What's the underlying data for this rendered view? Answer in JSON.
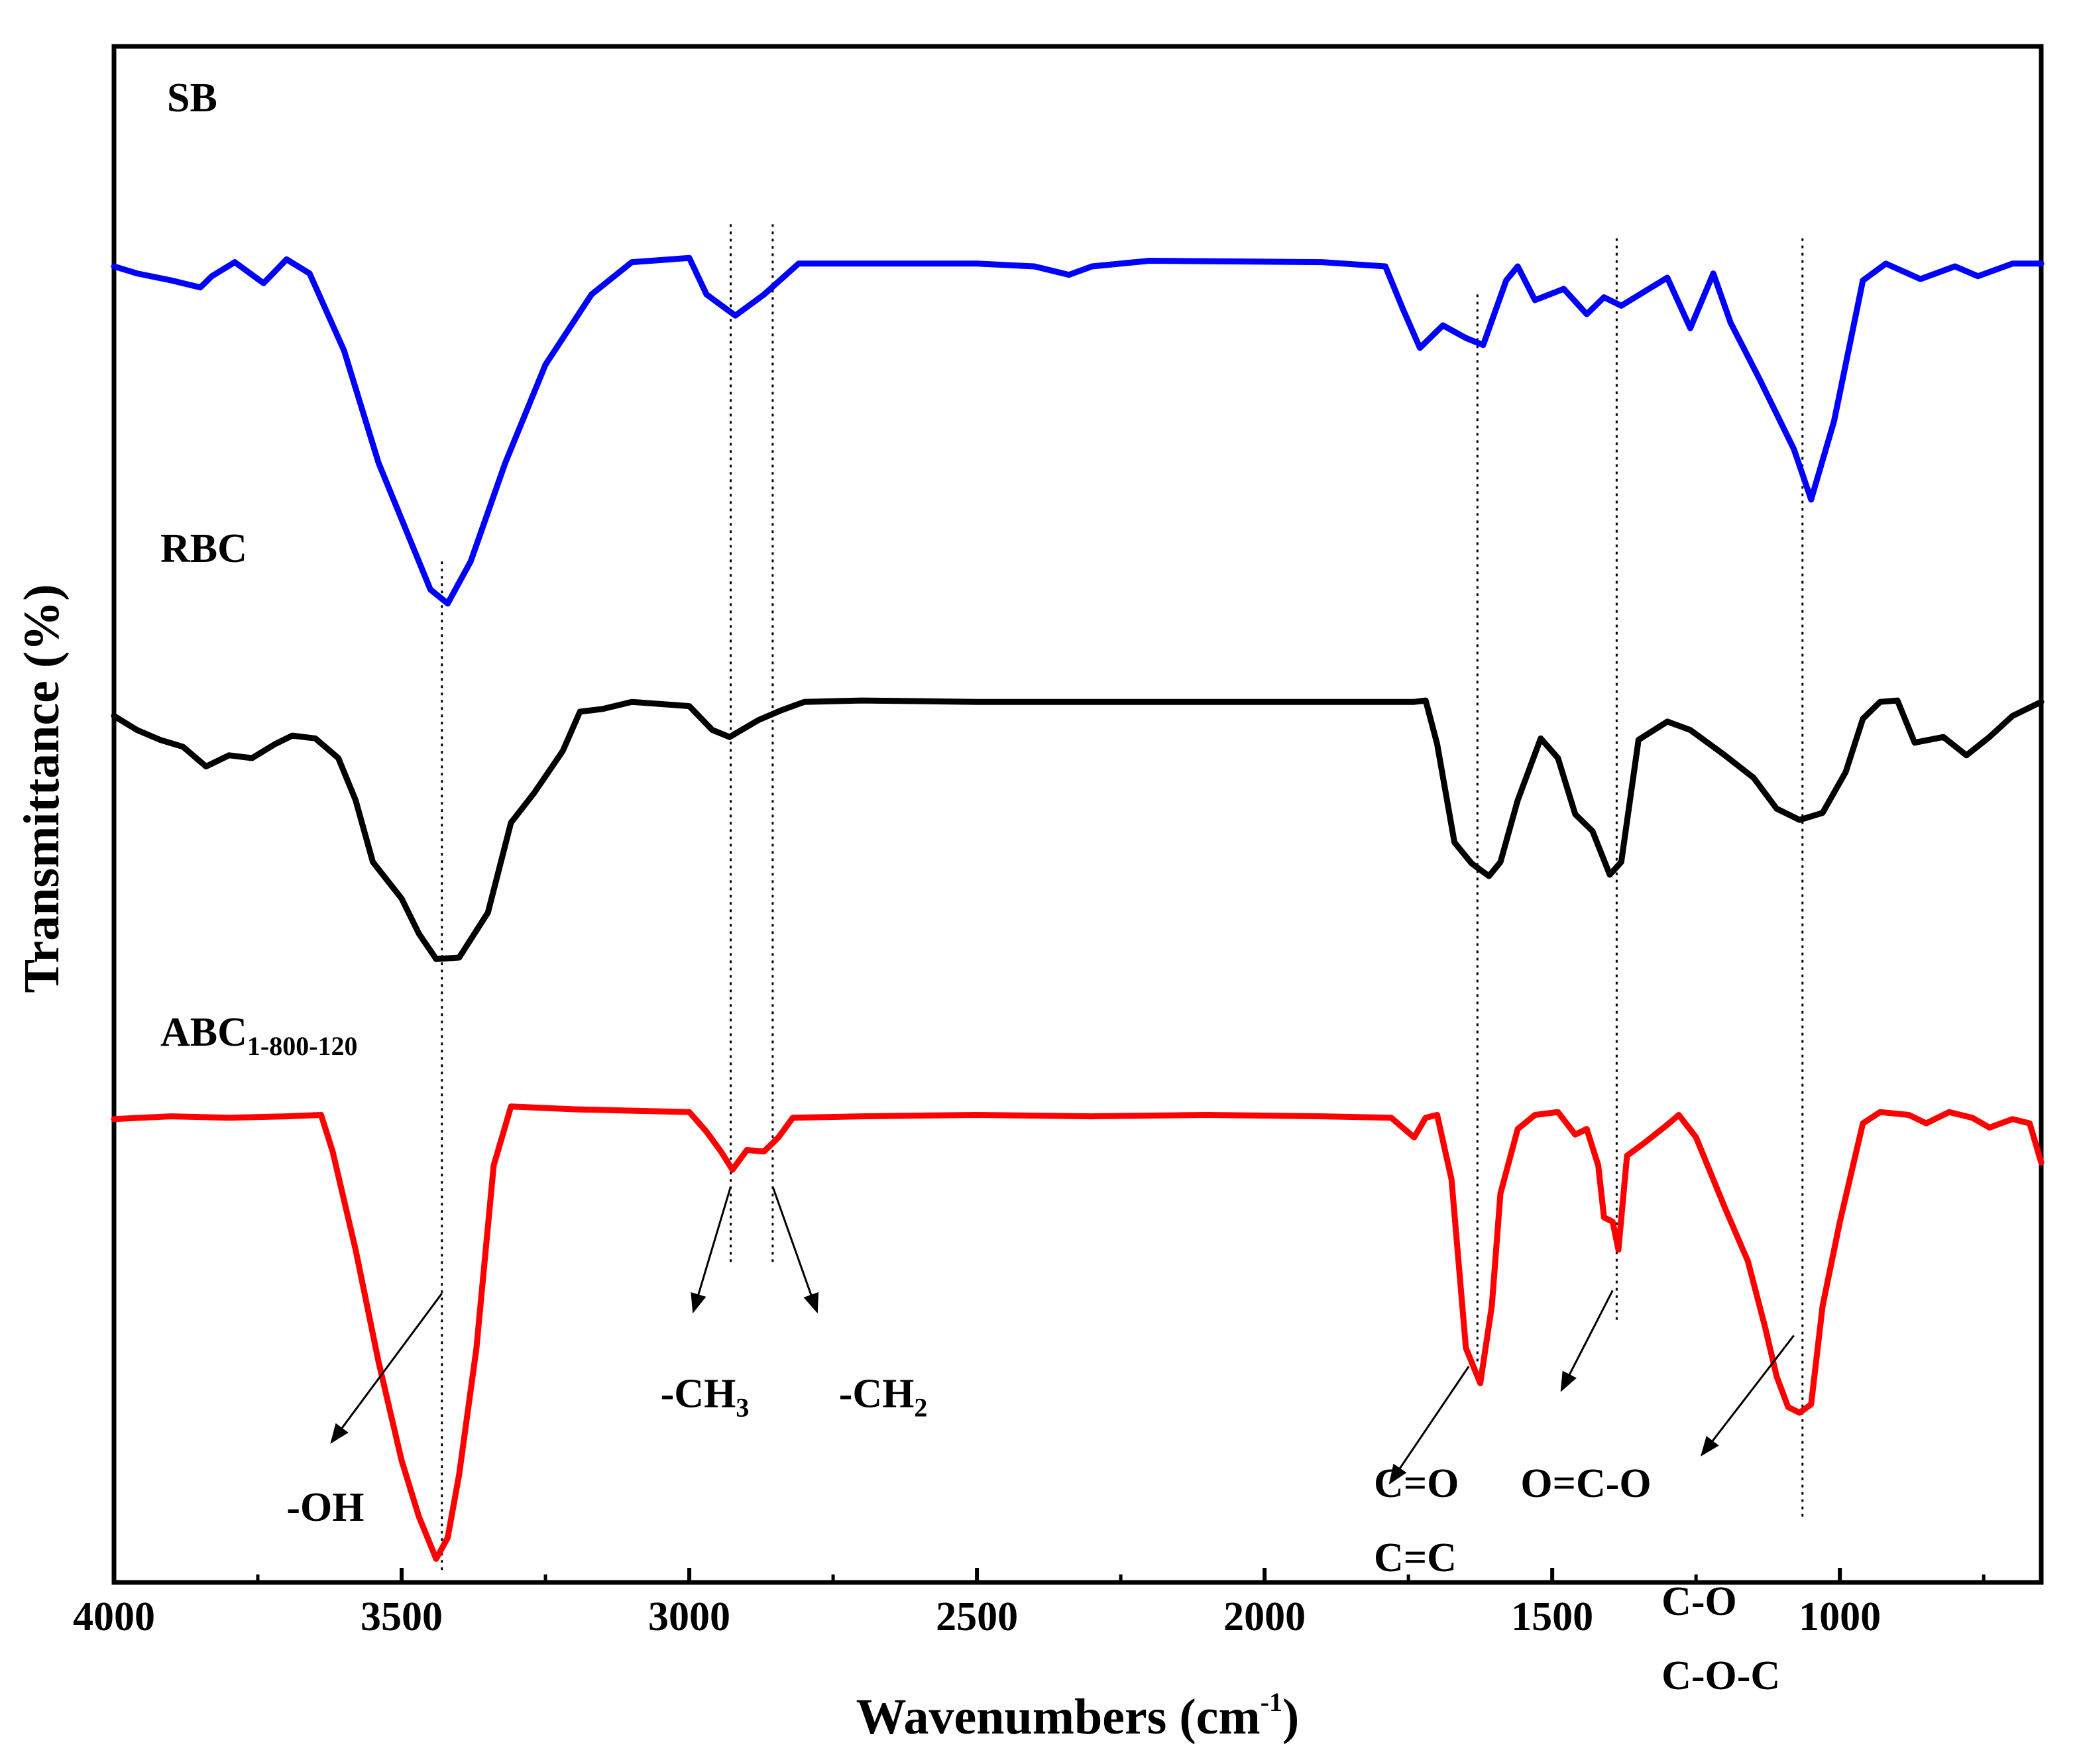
{
  "chart_data": {
    "type": "line",
    "title": "",
    "xlabel": "Wavenumbers (cm",
    "xlabel_sup": "-1",
    "xlabel_close": ")",
    "ylabel": "Transmittance (%)",
    "xlim": [
      4000,
      650
    ],
    "xticks": [
      4000,
      3500,
      3000,
      2500,
      2000,
      1500,
      1000
    ],
    "xtick_labels": [
      "4000",
      "3500",
      "3000",
      "2500",
      "2000",
      "1500",
      "1000"
    ],
    "ylim": [
      0,
      100
    ],
    "y_ticks_labeled": false,
    "series": [
      {
        "name": "SB",
        "label": "SB",
        "color": "#0000ff",
        "baseline_offset": 0,
        "points": [
          [
            4000,
            90
          ],
          [
            3960,
            89.5
          ],
          [
            3900,
            89
          ],
          [
            3850,
            88.5
          ],
          [
            3830,
            89.3
          ],
          [
            3790,
            90.3
          ],
          [
            3740,
            88.8
          ],
          [
            3700,
            90.5
          ],
          [
            3660,
            89.5
          ],
          [
            3600,
            84
          ],
          [
            3540,
            76
          ],
          [
            3490,
            71
          ],
          [
            3450,
            67
          ],
          [
            3420,
            66
          ],
          [
            3380,
            69
          ],
          [
            3320,
            76
          ],
          [
            3250,
            83
          ],
          [
            3170,
            88
          ],
          [
            3100,
            90.3
          ],
          [
            3000,
            90.6
          ],
          [
            2970,
            88
          ],
          [
            2920,
            86.5
          ],
          [
            2870,
            88
          ],
          [
            2810,
            90.2
          ],
          [
            2700,
            90.2
          ],
          [
            2500,
            90.2
          ],
          [
            2400,
            90
          ],
          [
            2340,
            89.4
          ],
          [
            2300,
            90
          ],
          [
            2200,
            90.4
          ],
          [
            1900,
            90.3
          ],
          [
            1790,
            90
          ],
          [
            1760,
            87
          ],
          [
            1730,
            84.2
          ],
          [
            1690,
            85.8
          ],
          [
            1650,
            84.9
          ],
          [
            1620,
            84.4
          ],
          [
            1580,
            89
          ],
          [
            1560,
            90
          ],
          [
            1530,
            87.6
          ],
          [
            1480,
            88.4
          ],
          [
            1440,
            86.6
          ],
          [
            1410,
            87.8
          ],
          [
            1380,
            87.2
          ],
          [
            1340,
            88.2
          ],
          [
            1300,
            89.2
          ],
          [
            1260,
            85.6
          ],
          [
            1220,
            89.5
          ],
          [
            1190,
            86
          ],
          [
            1140,
            82
          ],
          [
            1080,
            77
          ],
          [
            1050,
            73.4
          ],
          [
            1010,
            79
          ],
          [
            960,
            89
          ],
          [
            920,
            90.2
          ],
          [
            860,
            89.1
          ],
          [
            800,
            90
          ],
          [
            760,
            89.3
          ],
          [
            700,
            90.2
          ],
          [
            650,
            90.2
          ]
        ]
      },
      {
        "name": "RBC",
        "label": "RBC",
        "color": "#000000",
        "baseline_offset": 0,
        "points": [
          [
            4000,
            58
          ],
          [
            3960,
            57
          ],
          [
            3920,
            56.3
          ],
          [
            3880,
            55.8
          ],
          [
            3840,
            54.4
          ],
          [
            3800,
            55.2
          ],
          [
            3760,
            55
          ],
          [
            3720,
            56
          ],
          [
            3690,
            56.6
          ],
          [
            3650,
            56.4
          ],
          [
            3610,
            55
          ],
          [
            3580,
            52
          ],
          [
            3550,
            47.6
          ],
          [
            3500,
            45
          ],
          [
            3470,
            42.5
          ],
          [
            3440,
            40.7
          ],
          [
            3400,
            40.8
          ],
          [
            3350,
            44
          ],
          [
            3310,
            50.4
          ],
          [
            3270,
            52.5
          ],
          [
            3220,
            55.5
          ],
          [
            3190,
            58.3
          ],
          [
            3150,
            58.5
          ],
          [
            3100,
            59
          ],
          [
            3000,
            58.7
          ],
          [
            2960,
            57
          ],
          [
            2930,
            56.5
          ],
          [
            2880,
            57.7
          ],
          [
            2840,
            58.4
          ],
          [
            2800,
            59
          ],
          [
            2700,
            59.1
          ],
          [
            2500,
            59
          ],
          [
            2300,
            59
          ],
          [
            2100,
            59
          ],
          [
            1900,
            59
          ],
          [
            1740,
            59
          ],
          [
            1720,
            59.1
          ],
          [
            1700,
            56
          ],
          [
            1670,
            49
          ],
          [
            1640,
            47.5
          ],
          [
            1610,
            46.6
          ],
          [
            1590,
            47.6
          ],
          [
            1560,
            52
          ],
          [
            1520,
            56.4
          ],
          [
            1490,
            55
          ],
          [
            1460,
            51
          ],
          [
            1430,
            49.8
          ],
          [
            1400,
            46.7
          ],
          [
            1380,
            47.6
          ],
          [
            1350,
            56.3
          ],
          [
            1300,
            57.6
          ],
          [
            1260,
            57
          ],
          [
            1200,
            55.2
          ],
          [
            1150,
            53.6
          ],
          [
            1110,
            51.4
          ],
          [
            1070,
            50.6
          ],
          [
            1030,
            51.1
          ],
          [
            990,
            54
          ],
          [
            960,
            57.8
          ],
          [
            930,
            59
          ],
          [
            900,
            59.1
          ],
          [
            870,
            56.1
          ],
          [
            820,
            56.5
          ],
          [
            780,
            55.2
          ],
          [
            740,
            56.5
          ],
          [
            700,
            58
          ],
          [
            650,
            59
          ]
        ]
      },
      {
        "name": "ABC1-800-120",
        "label": "ABC",
        "label_sub": "1-800-120",
        "color": "#ff0000",
        "baseline_offset": 0,
        "points": [
          [
            4000,
            29.3
          ],
          [
            3900,
            29.5
          ],
          [
            3800,
            29.4
          ],
          [
            3700,
            29.5
          ],
          [
            3640,
            29.6
          ],
          [
            3620,
            27
          ],
          [
            3580,
            20
          ],
          [
            3540,
            12
          ],
          [
            3500,
            5
          ],
          [
            3470,
            1
          ],
          [
            3440,
            -2
          ],
          [
            3420,
            -0.5
          ],
          [
            3400,
            4
          ],
          [
            3370,
            13
          ],
          [
            3340,
            26
          ],
          [
            3310,
            30.2
          ],
          [
            3200,
            30
          ],
          [
            3100,
            29.9
          ],
          [
            3000,
            29.8
          ],
          [
            2970,
            28.4
          ],
          [
            2945,
            27
          ],
          [
            2925,
            25.7
          ],
          [
            2900,
            27.1
          ],
          [
            2870,
            27
          ],
          [
            2845,
            28
          ],
          [
            2820,
            29.4
          ],
          [
            2700,
            29.5
          ],
          [
            2500,
            29.6
          ],
          [
            2300,
            29.5
          ],
          [
            2100,
            29.6
          ],
          [
            1900,
            29.5
          ],
          [
            1780,
            29.4
          ],
          [
            1740,
            28
          ],
          [
            1720,
            29.4
          ],
          [
            1700,
            29.6
          ],
          [
            1675,
            25
          ],
          [
            1650,
            13
          ],
          [
            1625,
            10.5
          ],
          [
            1605,
            16
          ],
          [
            1590,
            24
          ],
          [
            1560,
            28.6
          ],
          [
            1530,
            29.6
          ],
          [
            1490,
            29.8
          ],
          [
            1460,
            28.2
          ],
          [
            1440,
            28.6
          ],
          [
            1420,
            26
          ],
          [
            1410,
            22.3
          ],
          [
            1395,
            22
          ],
          [
            1385,
            20
          ],
          [
            1370,
            26.7
          ],
          [
            1340,
            27.6
          ],
          [
            1300,
            28.9
          ],
          [
            1280,
            29.6
          ],
          [
            1250,
            28
          ],
          [
            1200,
            23
          ],
          [
            1160,
            19.2
          ],
          [
            1130,
            14.5
          ],
          [
            1110,
            11
          ],
          [
            1090,
            8.8
          ],
          [
            1070,
            8.4
          ],
          [
            1050,
            9
          ],
          [
            1030,
            16
          ],
          [
            1000,
            22
          ],
          [
            960,
            29
          ],
          [
            930,
            29.8
          ],
          [
            880,
            29.6
          ],
          [
            850,
            29
          ],
          [
            810,
            29.8
          ],
          [
            770,
            29.4
          ],
          [
            740,
            28.7
          ],
          [
            700,
            29.3
          ],
          [
            670,
            29
          ],
          [
            650,
            26.2
          ]
        ]
      }
    ],
    "reference_lines": [
      {
        "x": 3430,
        "ymin": -3,
        "ymax": 69
      },
      {
        "x": 2928,
        "ymin": 19,
        "ymax": 93
      },
      {
        "x": 2855,
        "ymin": 19,
        "ymax": 93
      },
      {
        "x": 1630,
        "ymin": 12,
        "ymax": 88
      },
      {
        "x": 1388,
        "ymin": 15,
        "ymax": 92
      },
      {
        "x": 1065,
        "ymin": 1,
        "ymax": 92
      }
    ],
    "annotations": [
      {
        "text": "-OH",
        "sub": "",
        "text2": "",
        "arrow_from": [
          3430,
          16.9
        ],
        "arrow_to": [
          3622,
          6.3
        ],
        "label_at": [
          3700,
          0.7
        ]
      },
      {
        "text": "-CH",
        "sub": "3",
        "text2": "",
        "arrow_from": [
          2928,
          24.5
        ],
        "arrow_to": [
          2993,
          15.6
        ],
        "label_at": [
          3050,
          8.8
        ]
      },
      {
        "text": "-CH",
        "sub": "2",
        "text2": "",
        "arrow_from": [
          2855,
          24.5
        ],
        "arrow_to": [
          2778,
          15.6
        ],
        "label_at": [
          2740,
          8.8
        ]
      },
      {
        "text": "C=O",
        "sub": "",
        "text2": "C=C",
        "arrow_from": [
          1645,
          11.7
        ],
        "arrow_to": [
          1782,
          3.4
        ],
        "label_at": [
          1810,
          2.4
        ]
      },
      {
        "text": "O=C-O",
        "sub": "",
        "text2": "",
        "arrow_from": [
          1395,
          17.1
        ],
        "arrow_to": [
          1484,
          10
        ],
        "label_at": [
          1555,
          2.4
        ]
      },
      {
        "text": "C-O",
        "sub": "",
        "text2": "C-O-C",
        "arrow_from": [
          1080,
          13.9
        ],
        "arrow_to": [
          1240,
          5.4
        ],
        "label_at": [
          1310,
          -6
        ]
      }
    ]
  }
}
